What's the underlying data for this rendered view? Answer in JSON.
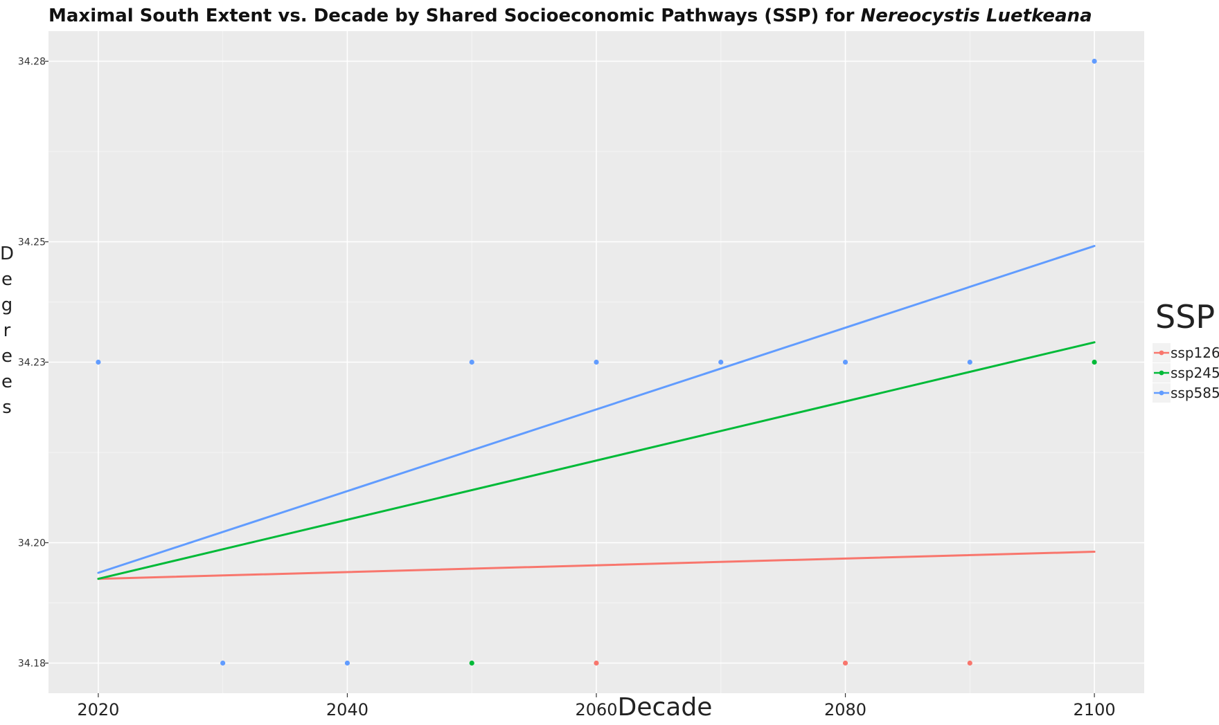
{
  "chart_data": {
    "type": "line",
    "title": "Maximal South Extent vs. Decade by Shared Socioeconomic Pathways (SSP) for ",
    "title_italic": "Nereocystis Luetkeana",
    "xlabel": "Decade",
    "ylabel": "Degrees",
    "xlim": [
      2016,
      2104
    ],
    "ylim": [
      34.175,
      34.285
    ],
    "x_ticks": [
      2020,
      2040,
      2060,
      2080,
      2100
    ],
    "x_minor": [
      2030,
      2050,
      2070,
      2090
    ],
    "y_ticks": [
      34.18,
      34.2,
      34.23,
      34.25,
      34.28
    ],
    "y_tick_labels": [
      "34.18",
      "34.20",
      "34.23",
      "34.25",
      "34.28"
    ],
    "y_minor": [
      34.19,
      34.215,
      34.24,
      34.265
    ],
    "grid": true,
    "legend": {
      "title": "SSP",
      "position": "right",
      "entries": [
        "ssp126",
        "ssp245",
        "ssp585"
      ]
    },
    "series": [
      {
        "name": "ssp126",
        "color": "#F8766D",
        "points": [
          [
            2060,
            34.18
          ],
          [
            2080,
            34.18
          ],
          [
            2090,
            34.18
          ]
        ],
        "trend": [
          [
            2020,
            34.194
          ],
          [
            2100,
            34.1985
          ]
        ]
      },
      {
        "name": "ssp245",
        "color": "#00BA38",
        "points": [
          [
            2050,
            34.18
          ],
          [
            2100,
            34.23
          ]
        ],
        "trend": [
          [
            2020,
            34.194
          ],
          [
            2100,
            34.2333
          ]
        ]
      },
      {
        "name": "ssp585",
        "color": "#619CFF",
        "points": [
          [
            2020,
            34.23
          ],
          [
            2030,
            34.18
          ],
          [
            2040,
            34.18
          ],
          [
            2050,
            34.23
          ],
          [
            2060,
            34.23
          ],
          [
            2070,
            34.23
          ],
          [
            2080,
            34.23
          ],
          [
            2090,
            34.23
          ],
          [
            2100,
            34.28
          ]
        ],
        "trend": [
          [
            2020,
            34.195
          ],
          [
            2100,
            34.2493
          ]
        ]
      }
    ]
  }
}
